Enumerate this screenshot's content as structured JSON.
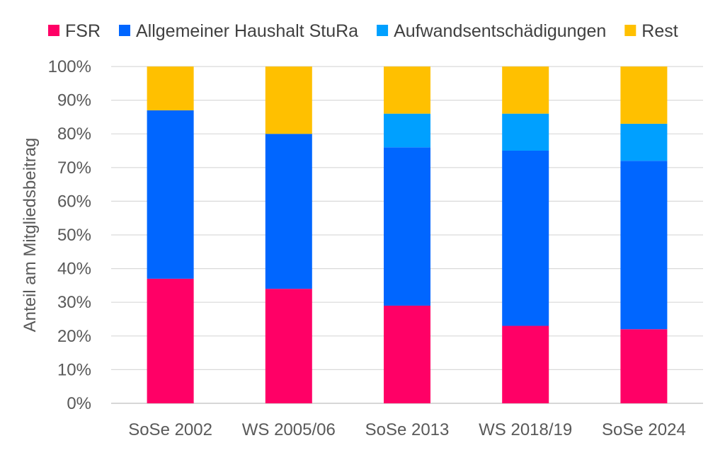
{
  "chart_data": {
    "type": "bar",
    "stacked": true,
    "percent": true,
    "title": "",
    "xlabel": "",
    "ylabel": "Anteil am Mitgliedsbeitrag",
    "ylim": [
      0,
      100
    ],
    "yticks": [
      "0%",
      "10%",
      "20%",
      "30%",
      "40%",
      "50%",
      "60%",
      "70%",
      "80%",
      "90%",
      "100%"
    ],
    "grid": true,
    "legend_position": "top",
    "categories": [
      "SoSe 2002",
      "WS 2005/06",
      "SoSe 2013",
      "WS 2018/19",
      "SoSe 2024"
    ],
    "series": [
      {
        "name": "FSR",
        "color": "#ff0066",
        "values": [
          37,
          34,
          29,
          23,
          22
        ]
      },
      {
        "name": "Allgemeiner Haushalt StuRa",
        "color": "#0066ff",
        "values": [
          50,
          46,
          47,
          52,
          50
        ]
      },
      {
        "name": "Aufwandsentschädigungen",
        "color": "#00a0ff",
        "values": [
          0,
          0,
          10,
          11,
          11
        ]
      },
      {
        "name": "Rest",
        "color": "#ffc000",
        "values": [
          13,
          20,
          14,
          14,
          17
        ]
      }
    ]
  }
}
